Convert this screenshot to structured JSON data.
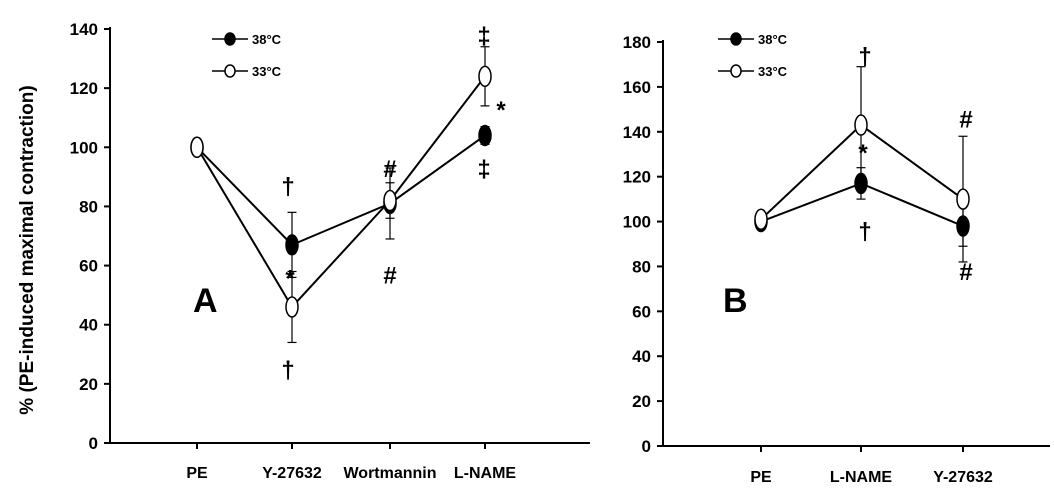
{
  "ylabel": "% (PE-induced maximal contraction)",
  "chart_data": [
    {
      "type": "line",
      "panel_label": "A",
      "categories": [
        "PE",
        "Y-27632",
        "Wortmannin",
        "L-NAME"
      ],
      "ylim": [
        0,
        140
      ],
      "yticks": [
        0,
        20,
        40,
        60,
        80,
        100,
        120,
        140
      ],
      "grid": false,
      "legend_position": "top-left",
      "series": [
        {
          "name": "38°C",
          "marker": "filled",
          "values": [
            100,
            67,
            81,
            104
          ],
          "errors": [
            0,
            11,
            12,
            3
          ]
        },
        {
          "name": "33°C",
          "marker": "open",
          "values": [
            100,
            46,
            82,
            124
          ],
          "errors": [
            0,
            12,
            6,
            10
          ]
        }
      ],
      "annotations": [
        {
          "text": "†",
          "category": 1,
          "y": 87
        },
        {
          "text": "*",
          "category": 1,
          "y": 56
        },
        {
          "text": "†",
          "category": 1,
          "y": 25
        },
        {
          "text": "#",
          "category": 2,
          "y": 93
        },
        {
          "text": "#",
          "category": 2,
          "y": 57
        },
        {
          "text": "‡",
          "category": 3,
          "y": 138
        },
        {
          "text": "*",
          "category": 3,
          "y": 113
        },
        {
          "text": "‡",
          "category": 3,
          "y": 93
        }
      ]
    },
    {
      "type": "line",
      "panel_label": "B",
      "categories": [
        "PE",
        "L-NAME",
        "Y-27632"
      ],
      "ylim": [
        0,
        180
      ],
      "yticks": [
        0,
        20,
        40,
        60,
        80,
        100,
        120,
        140,
        160,
        180
      ],
      "grid": false,
      "legend_position": "top-left",
      "series": [
        {
          "name": "38°C",
          "marker": "filled",
          "values": [
            100,
            117,
            98
          ],
          "errors": [
            2,
            7,
            9
          ]
        },
        {
          "name": "33°C",
          "marker": "open",
          "values": [
            101,
            143,
            110
          ],
          "errors": [
            2,
            26,
            28
          ]
        }
      ],
      "annotations": [
        {
          "text": "†",
          "category": 1,
          "y": 174
        },
        {
          "text": "*",
          "category": 1,
          "y": 131
        },
        {
          "text": "†",
          "category": 1,
          "y": 96
        },
        {
          "text": "#",
          "category": 2,
          "y": 146
        },
        {
          "text": "#",
          "category": 2,
          "y": 78
        }
      ]
    }
  ]
}
